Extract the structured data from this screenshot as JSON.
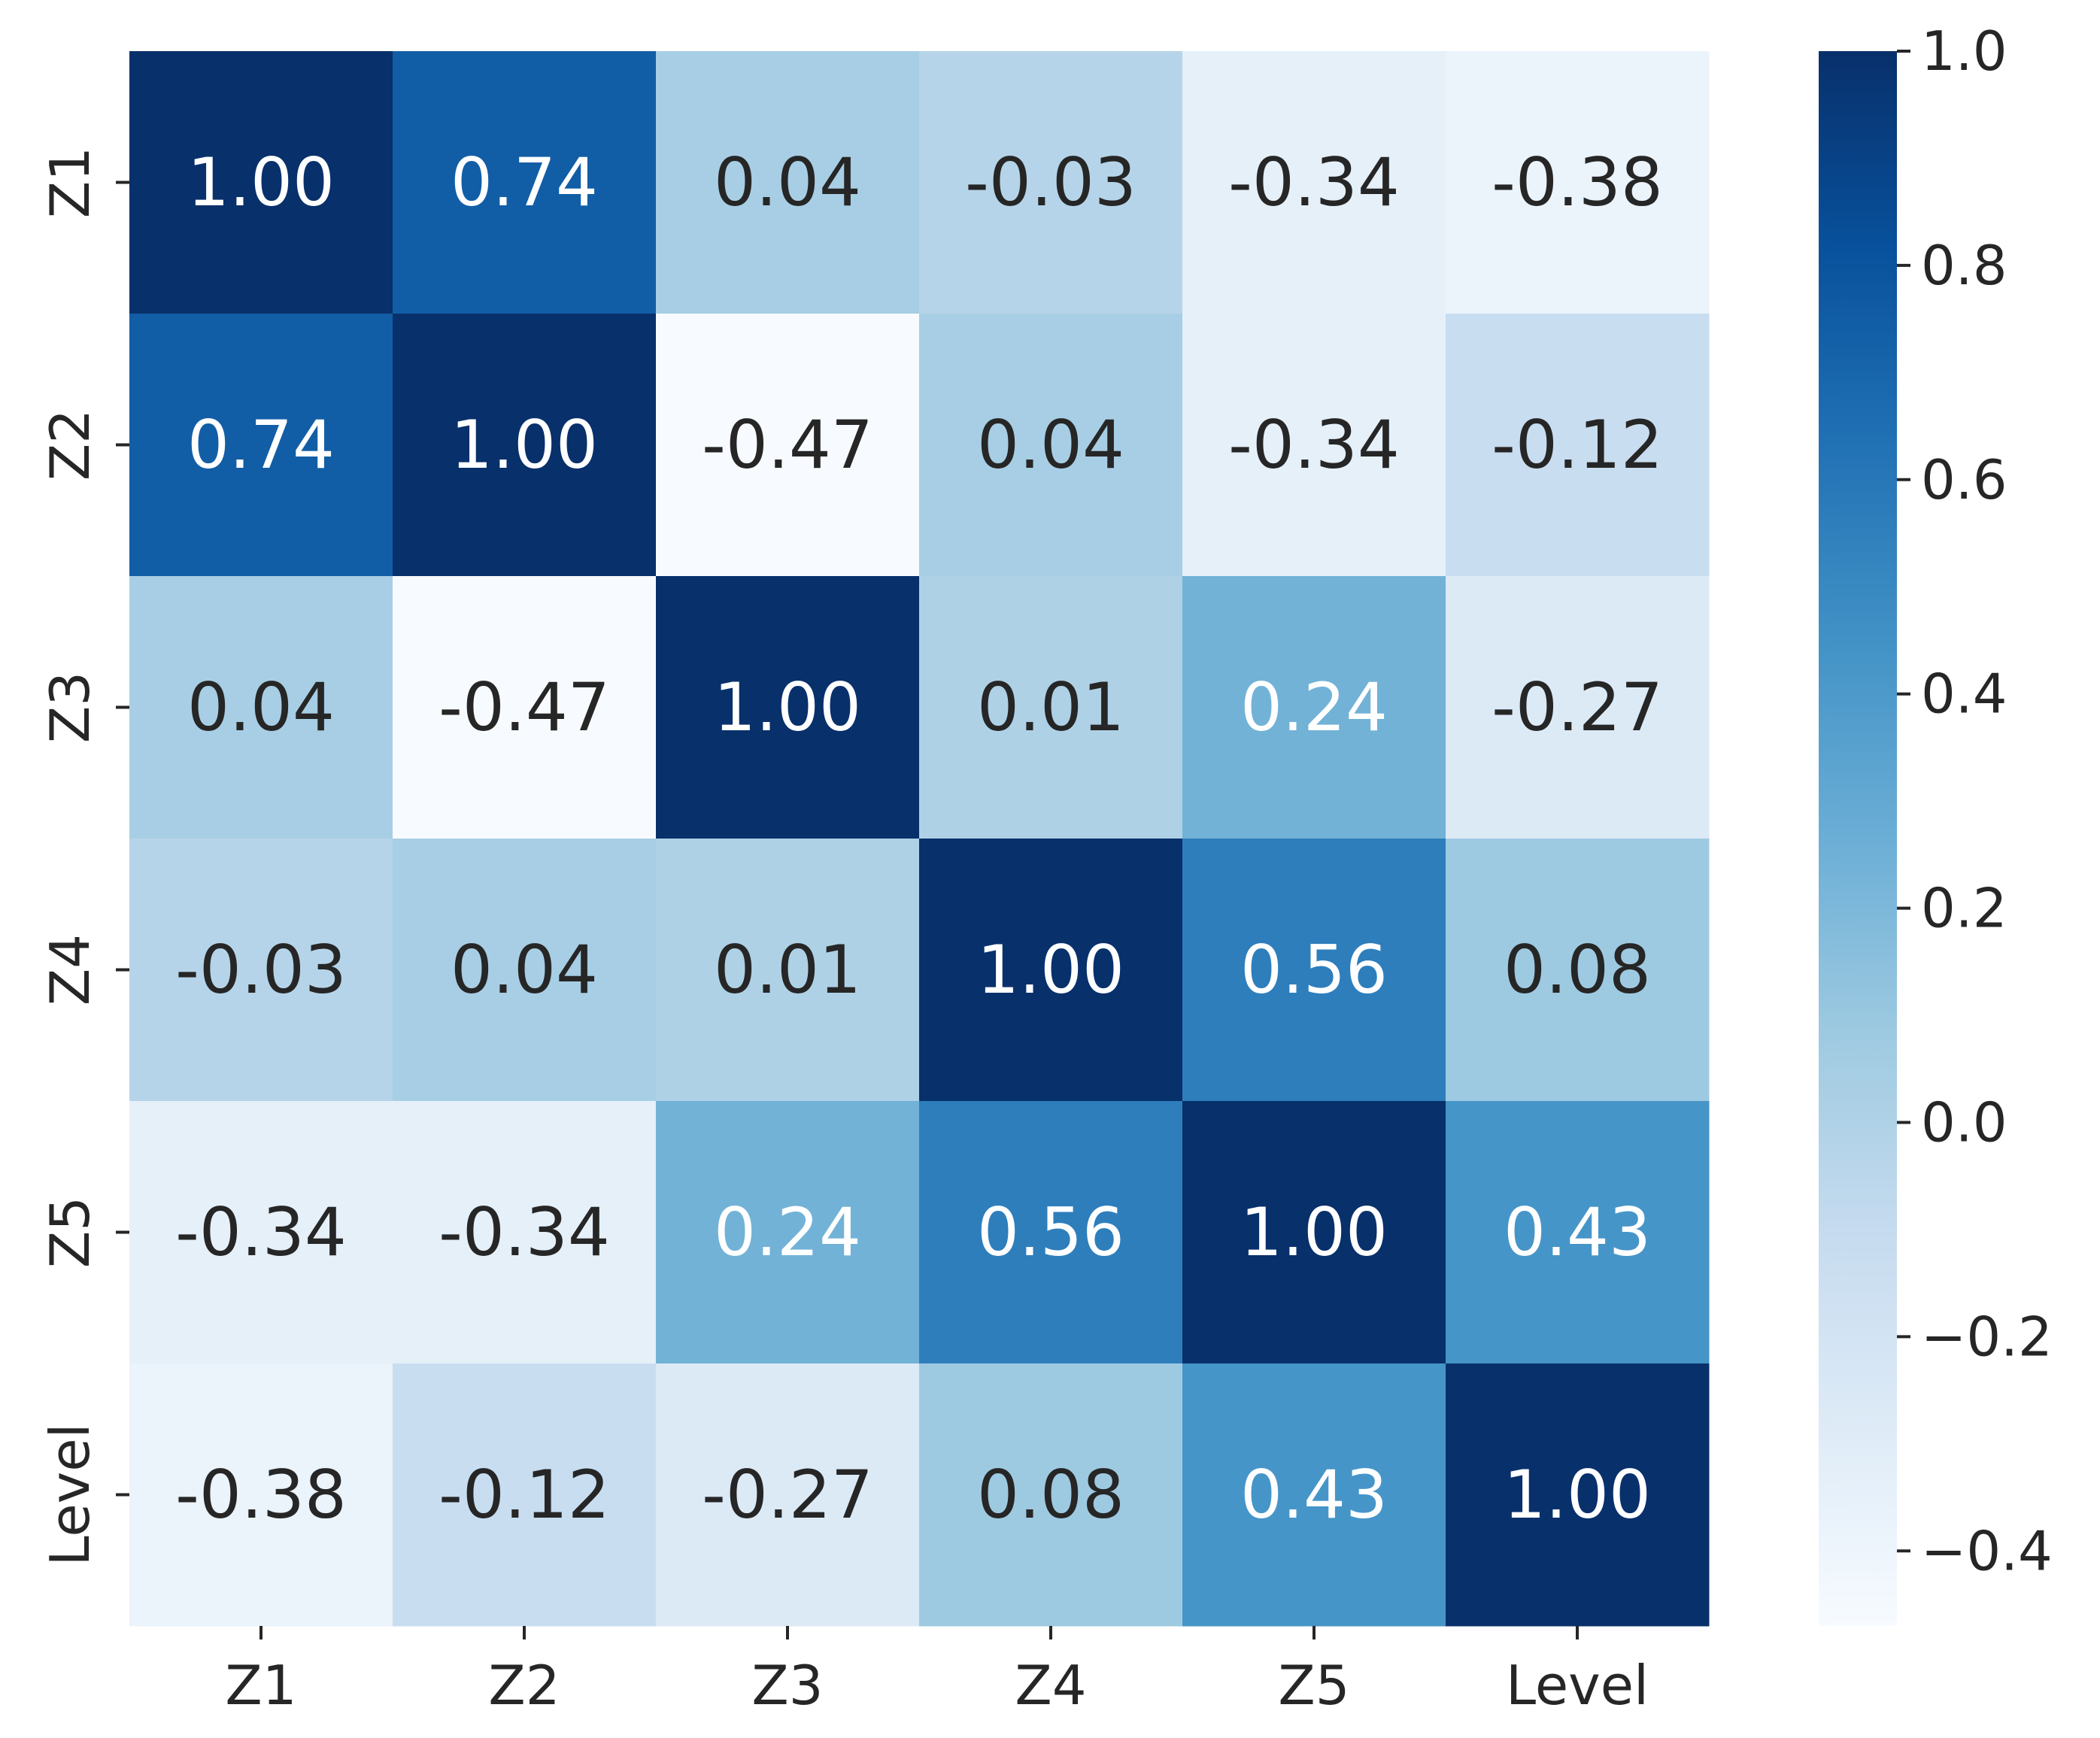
{
  "chart_data": {
    "type": "heatmap",
    "title": "",
    "xlabel": "",
    "ylabel": "",
    "x_categories": [
      "Z1",
      "Z2",
      "Z3",
      "Z4",
      "Z5",
      "Level"
    ],
    "y_categories": [
      "Z1",
      "Z2",
      "Z3",
      "Z4",
      "Z5",
      "Level"
    ],
    "values": [
      [
        1.0,
        0.74,
        0.04,
        -0.03,
        -0.34,
        -0.38
      ],
      [
        0.74,
        1.0,
        -0.47,
        0.04,
        -0.34,
        -0.12
      ],
      [
        0.04,
        -0.47,
        1.0,
        0.01,
        0.24,
        -0.27
      ],
      [
        -0.03,
        0.04,
        0.01,
        1.0,
        0.56,
        0.08
      ],
      [
        -0.34,
        -0.34,
        0.24,
        0.56,
        1.0,
        0.43
      ],
      [
        -0.38,
        -0.12,
        -0.27,
        0.08,
        0.43,
        1.0
      ]
    ],
    "value_labels": [
      [
        "1.00",
        "0.74",
        "0.04",
        "-0.03",
        "-0.34",
        "-0.38"
      ],
      [
        "0.74",
        "1.00",
        "-0.47",
        "0.04",
        "-0.34",
        "-0.12"
      ],
      [
        "0.04",
        "-0.47",
        "1.00",
        "0.01",
        "0.24",
        "-0.27"
      ],
      [
        "-0.03",
        "0.04",
        "0.01",
        "1.00",
        "0.56",
        "0.08"
      ],
      [
        "-0.34",
        "-0.34",
        "0.24",
        "0.56",
        "1.00",
        "0.43"
      ],
      [
        "-0.38",
        "-0.12",
        "-0.27",
        "0.08",
        "0.43",
        "1.00"
      ]
    ],
    "colormap": "Blues",
    "vmin": -0.47,
    "vmax": 1.0,
    "colorbar": {
      "range": [
        -0.47,
        1.0
      ],
      "ticks": [
        1.0,
        0.8,
        0.6,
        0.4,
        0.2,
        0.0,
        -0.2,
        -0.4
      ],
      "tick_labels": [
        "1.0",
        "0.8",
        "0.6",
        "0.4",
        "0.2",
        "0.0",
        "−0.2",
        "−0.4"
      ]
    }
  },
  "colors": {
    "text_dark": "#262626",
    "text_light": "#ffffff",
    "axis": "#262626"
  }
}
